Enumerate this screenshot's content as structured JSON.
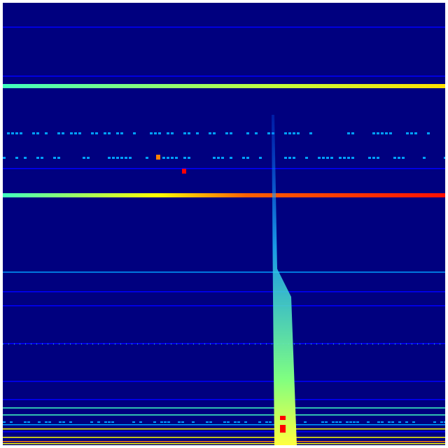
{
  "spectrogram": {
    "colormap": "jet",
    "colors": {
      "background": "#00007f",
      "low": "#0000ff",
      "mid_low": "#00a0ff",
      "mid": "#40ffc0",
      "mid_high": "#ffff00",
      "high": "#ff8000",
      "peak": "#ff0000"
    }
  }
}
